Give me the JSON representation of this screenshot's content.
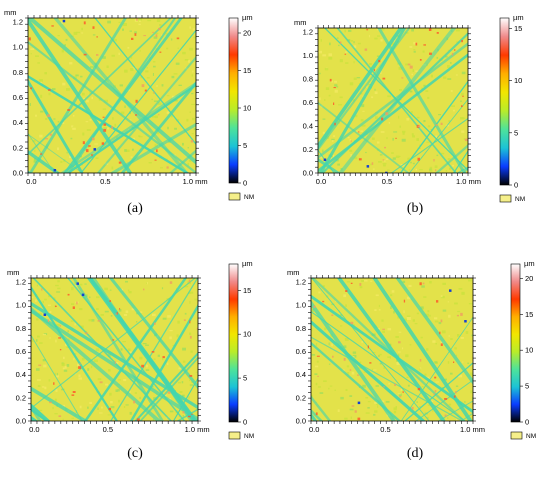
{
  "colorbar_gradient": [
    "#ffffff",
    "#f08a8a",
    "#ff3a00",
    "#ffae00",
    "#f2e600",
    "#b9ec2a",
    "#4ee39a",
    "#1cc3d6",
    "#0a3cff",
    "#000000"
  ],
  "map_colors": {
    "base": "#e3e24a",
    "scratch": "#44d6ae",
    "highlight": "#f0a060",
    "pit": "#1640d0"
  },
  "panels": [
    {
      "id": "a",
      "caption": "(a)",
      "y_unit": "mm",
      "x_unit": "mm",
      "y_ticks": [
        "1.2",
        "1.0",
        "0.8",
        "0.6",
        "0.4",
        "0.2",
        "0.0"
      ],
      "x_ticks": [
        "0.0",
        "0.5",
        "1.0 mm"
      ],
      "colorbar_unit": "µm",
      "colorbar_ticks": [
        "20",
        "15",
        "10",
        "5",
        "0"
      ],
      "colorbar_max": 22,
      "legend_label": "NM"
    },
    {
      "id": "b",
      "caption": "(b)",
      "y_unit": "mm",
      "x_unit": "mm",
      "y_ticks": [
        "1.2",
        "1.0",
        "0.8",
        "0.6",
        "0.4",
        "0.2",
        "0.0"
      ],
      "x_ticks": [
        "0.0",
        "0.5",
        "1.0 mm"
      ],
      "colorbar_unit": "µm",
      "colorbar_ticks": [
        "15",
        "10",
        "5",
        "0"
      ],
      "colorbar_max": 16,
      "legend_label": "NM"
    },
    {
      "id": "c",
      "caption": "(c)",
      "y_unit": "mm",
      "x_unit": "mm",
      "y_ticks": [
        "1.2",
        "1.0",
        "0.8",
        "0.6",
        "0.4",
        "0.2",
        "0.0"
      ],
      "x_ticks": [
        "0.0",
        "0.5",
        "1.0 mm"
      ],
      "colorbar_unit": "µm",
      "colorbar_ticks": [
        "15",
        "10",
        "5",
        "0"
      ],
      "colorbar_max": 18,
      "legend_label": "NM"
    },
    {
      "id": "d",
      "caption": "(d)",
      "y_unit": "mm",
      "x_unit": "mm",
      "y_ticks": [
        "1.2",
        "1.0",
        "0.8",
        "0.6",
        "0.4",
        "0.2",
        "0.0"
      ],
      "x_ticks": [
        "0.0",
        "0.5",
        "1.0 mm"
      ],
      "colorbar_unit": "µm",
      "colorbar_ticks": [
        "20",
        "15",
        "10",
        "5",
        "0"
      ],
      "colorbar_max": 22,
      "legend_label": "NM"
    }
  ]
}
